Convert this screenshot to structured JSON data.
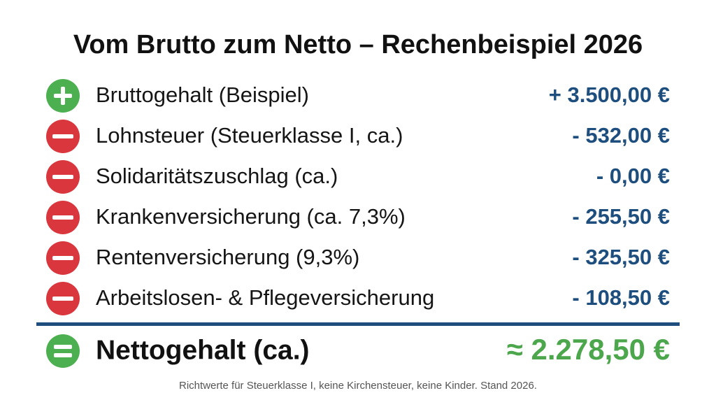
{
  "header": {
    "title": "Vom Brutto zum Netto – Rechenbeispiel 2026"
  },
  "rows": [
    {
      "label": "Bruttogehalt (Beispiel)",
      "amount": "+ 3.500,00 €"
    },
    {
      "label": "Lohnsteuer (Steuerklasse I, ca.)",
      "amount": "- 532,00 €"
    },
    {
      "label": "Solidaritätszuschlag (ca.)",
      "amount": "- 0,00 €"
    },
    {
      "label": "Krankenversicherung (ca. 7,3%)",
      "amount": "- 255,50 €"
    },
    {
      "label": "Rentenversicherung (9,3%)",
      "amount": "- 325,50 €"
    },
    {
      "label": "Arbeitslosen- & Pflegeversicherung",
      "amount": "- 108,50 €"
    }
  ],
  "total": {
    "label": "Nettogehalt (ca.)",
    "amount": "≈ 2.278,50 €"
  },
  "footnote": "Richtwerte für Steuerklasse I, keine Kirchensteuer, keine Kinder. Stand 2026."
}
